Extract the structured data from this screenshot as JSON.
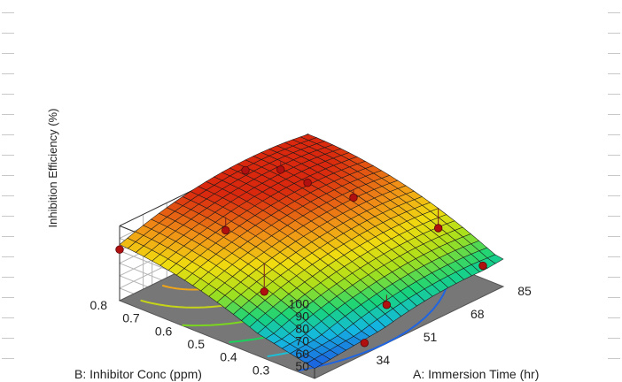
{
  "chart_data": {
    "type": "surface3d",
    "zlabel": "Inhibition Efficiency (%)",
    "xlabel": "A: Immersion Time (hr)",
    "ylabel": "B: Inhibitor Conc (ppm)",
    "z_ticks": [
      "100",
      "90",
      "80",
      "70",
      "60",
      "50"
    ],
    "x_ticks": [
      "34",
      "51",
      "68",
      "85"
    ],
    "y_ticks": [
      "0.3",
      "0.4",
      "0.5",
      "0.6",
      "0.7",
      "0.8"
    ],
    "x_range": [
      17,
      85
    ],
    "y_range": [
      0.2,
      0.8
    ],
    "z_range": [
      40,
      100
    ],
    "surface_model": "quadratic response surface",
    "surface_corners": [
      {
        "time": 17,
        "conc": 0.2,
        "efficiency": 48
      },
      {
        "time": 17,
        "conc": 0.8,
        "efficiency": 82
      },
      {
        "time": 85,
        "conc": 0.8,
        "efficiency": 86
      },
      {
        "time": 85,
        "conc": 0.2,
        "efficiency": 62
      }
    ],
    "surface_peak": {
      "time": 60,
      "conc": 0.62,
      "efficiency": 99
    },
    "colormap": [
      "#1f3fe0",
      "#14b8e0",
      "#18d47a",
      "#a5e01c",
      "#f0dc10",
      "#f08f16",
      "#d9280e"
    ],
    "floor_color": "#777777",
    "contour_colors": [
      "#1f64e0",
      "#1ac0d8",
      "#1ad25c",
      "#7ad61e",
      "#c6d419",
      "#f0a418"
    ],
    "points_above": [
      {
        "time": 17,
        "conc": 0.8,
        "efficiency": 81
      },
      {
        "time": 34,
        "conc": 0.5,
        "efficiency": 60
      },
      {
        "time": 40,
        "conc": 0.67,
        "efficiency": 85
      },
      {
        "time": 50,
        "conc": 0.26,
        "efficiency": 57
      },
      {
        "time": 60,
        "conc": 0.78,
        "efficiency": 100
      },
      {
        "time": 66,
        "conc": 0.64,
        "efficiency": 98
      },
      {
        "time": 68,
        "conc": 0.74,
        "efficiency": 96
      },
      {
        "time": 72,
        "conc": 0.55,
        "efficiency": 89
      },
      {
        "time": 80,
        "conc": 0.22,
        "efficiency": 60
      },
      {
        "time": 85,
        "conc": 0.4,
        "efficiency": 66
      },
      {
        "time": 35,
        "conc": 0.2,
        "efficiency": 49
      }
    ],
    "points_below": [
      {
        "time": 26,
        "conc": 0.62,
        "efficiency": 68
      },
      {
        "time": 72,
        "conc": 0.4,
        "efficiency": 52
      }
    ],
    "point_color_above": "#b01010",
    "point_color_below": "#f5c8c0"
  }
}
